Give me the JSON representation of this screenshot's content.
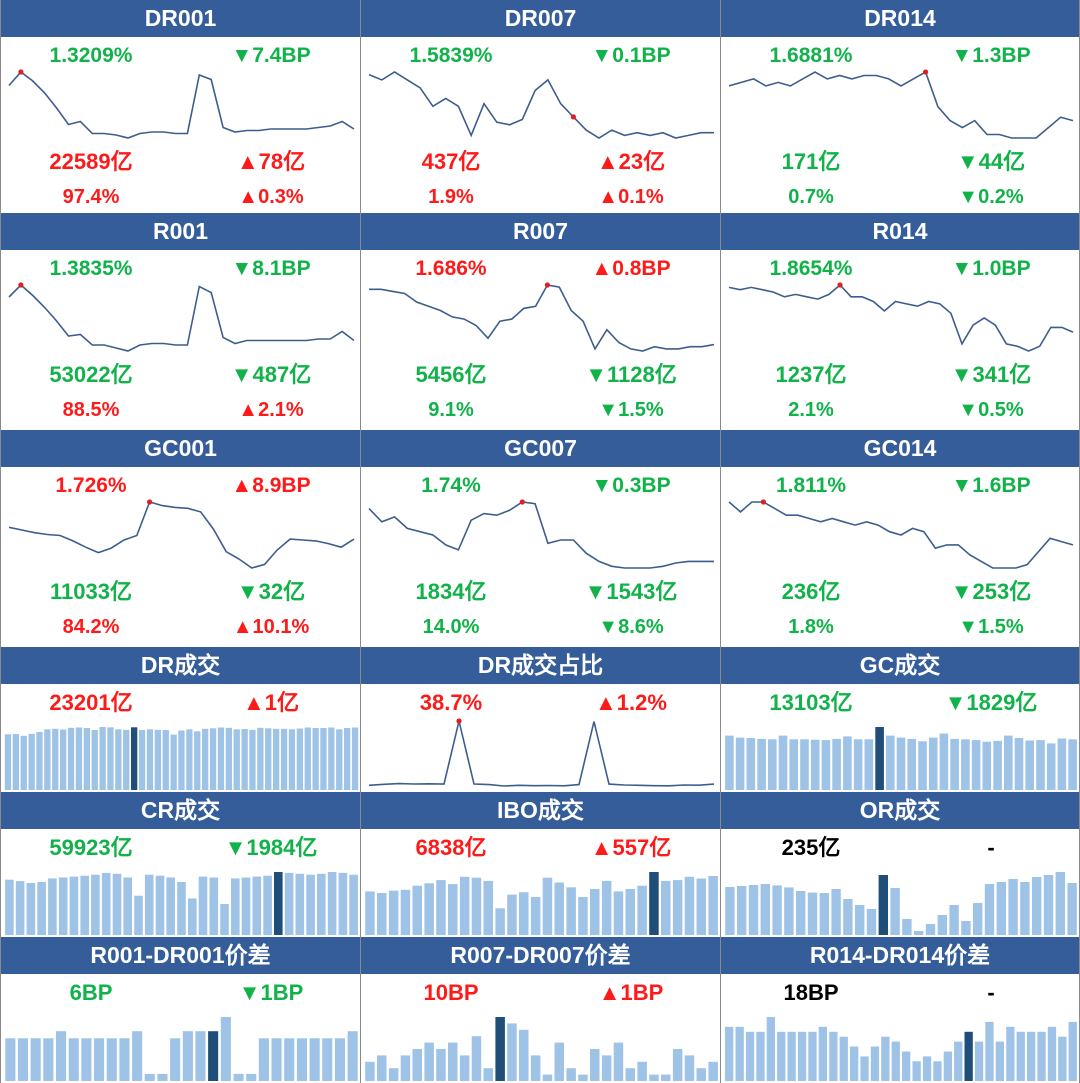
{
  "colors": {
    "header_bg": "#345d9a",
    "up": "#ff1a1a",
    "down": "#12b24a",
    "neutral": "#000000",
    "line": "#3c5e8e",
    "marker": "#e02020",
    "bar": "#9ec3e6",
    "bar_highlight": "#1f4e79"
  },
  "panels": [
    {
      "title": "DR001",
      "chart_type": "line",
      "rate": {
        "text": "1.3209%",
        "dir": "down"
      },
      "rate_change": {
        "text": "▼7.4BP",
        "dir": "down"
      },
      "volume": {
        "text": "22589亿",
        "dir": "up"
      },
      "volume_change": {
        "text": "▲78亿",
        "dir": "up"
      },
      "share": {
        "text": "97.4%",
        "dir": "up"
      },
      "share_change": {
        "text": "▲0.3%",
        "dir": "up"
      }
    },
    {
      "title": "DR007",
      "chart_type": "line",
      "rate": {
        "text": "1.5839%",
        "dir": "down"
      },
      "rate_change": {
        "text": "▼0.1BP",
        "dir": "down"
      },
      "volume": {
        "text": "437亿",
        "dir": "up"
      },
      "volume_change": {
        "text": "▲23亿",
        "dir": "up"
      },
      "share": {
        "text": "1.9%",
        "dir": "up"
      },
      "share_change": {
        "text": "▲0.1%",
        "dir": "up"
      }
    },
    {
      "title": "DR014",
      "chart_type": "line",
      "rate": {
        "text": "1.6881%",
        "dir": "down"
      },
      "rate_change": {
        "text": "▼1.3BP",
        "dir": "down"
      },
      "volume": {
        "text": "171亿",
        "dir": "down"
      },
      "volume_change": {
        "text": "▼44亿",
        "dir": "down"
      },
      "share": {
        "text": "0.7%",
        "dir": "down"
      },
      "share_change": {
        "text": "▼0.2%",
        "dir": "down"
      }
    },
    {
      "title": "R001",
      "chart_type": "line",
      "rate": {
        "text": "1.3835%",
        "dir": "down"
      },
      "rate_change": {
        "text": "▼8.1BP",
        "dir": "down"
      },
      "volume": {
        "text": "53022亿",
        "dir": "down"
      },
      "volume_change": {
        "text": "▼487亿",
        "dir": "down"
      },
      "share": {
        "text": "88.5%",
        "dir": "up"
      },
      "share_change": {
        "text": "▲2.1%",
        "dir": "up"
      }
    },
    {
      "title": "R007",
      "chart_type": "line",
      "rate": {
        "text": "1.686%",
        "dir": "up"
      },
      "rate_change": {
        "text": "▲0.8BP",
        "dir": "up"
      },
      "volume": {
        "text": "5456亿",
        "dir": "down"
      },
      "volume_change": {
        "text": "▼1128亿",
        "dir": "down"
      },
      "share": {
        "text": "9.1%",
        "dir": "down"
      },
      "share_change": {
        "text": "▼1.5%",
        "dir": "down"
      }
    },
    {
      "title": "R014",
      "chart_type": "line",
      "rate": {
        "text": "1.8654%",
        "dir": "down"
      },
      "rate_change": {
        "text": "▼1.0BP",
        "dir": "down"
      },
      "volume": {
        "text": "1237亿",
        "dir": "down"
      },
      "volume_change": {
        "text": "▼341亿",
        "dir": "down"
      },
      "share": {
        "text": "2.1%",
        "dir": "down"
      },
      "share_change": {
        "text": "▼0.5%",
        "dir": "down"
      }
    },
    {
      "title": "GC001",
      "chart_type": "line",
      "rate": {
        "text": "1.726%",
        "dir": "up"
      },
      "rate_change": {
        "text": "▲8.9BP",
        "dir": "up"
      },
      "volume": {
        "text": "11033亿",
        "dir": "down"
      },
      "volume_change": {
        "text": "▼32亿",
        "dir": "down"
      },
      "share": {
        "text": "84.2%",
        "dir": "up"
      },
      "share_change": {
        "text": "▲10.1%",
        "dir": "up"
      }
    },
    {
      "title": "GC007",
      "chart_type": "line",
      "rate": {
        "text": "1.74%",
        "dir": "down"
      },
      "rate_change": {
        "text": "▼0.3BP",
        "dir": "down"
      },
      "volume": {
        "text": "1834亿",
        "dir": "down"
      },
      "volume_change": {
        "text": "▼1543亿",
        "dir": "down"
      },
      "share": {
        "text": "14.0%",
        "dir": "down"
      },
      "share_change": {
        "text": "▼8.6%",
        "dir": "down"
      }
    },
    {
      "title": "GC014",
      "chart_type": "line",
      "rate": {
        "text": "1.811%",
        "dir": "down"
      },
      "rate_change": {
        "text": "▼1.6BP",
        "dir": "down"
      },
      "volume": {
        "text": "236亿",
        "dir": "down"
      },
      "volume_change": {
        "text": "▼253亿",
        "dir": "down"
      },
      "share": {
        "text": "1.8%",
        "dir": "down"
      },
      "share_change": {
        "text": "▼1.5%",
        "dir": "down"
      }
    },
    {
      "title": "DR成交",
      "chart_type": "bar",
      "value": {
        "text": "23201亿",
        "dir": "up"
      },
      "change": {
        "text": "▲1亿",
        "dir": "up"
      }
    },
    {
      "title": "DR成交占比",
      "chart_type": "line",
      "value": {
        "text": "38.7%",
        "dir": "up"
      },
      "change": {
        "text": "▲1.2%",
        "dir": "up"
      }
    },
    {
      "title": "GC成交",
      "chart_type": "bar",
      "value": {
        "text": "13103亿",
        "dir": "down"
      },
      "change": {
        "text": "▼1829亿",
        "dir": "down"
      }
    },
    {
      "title": "CR成交",
      "chart_type": "bar",
      "value": {
        "text": "59923亿",
        "dir": "down"
      },
      "change": {
        "text": "▼1984亿",
        "dir": "down"
      }
    },
    {
      "title": "IBO成交",
      "chart_type": "bar",
      "value": {
        "text": "6838亿",
        "dir": "up"
      },
      "change": {
        "text": "▲557亿",
        "dir": "up"
      }
    },
    {
      "title": "OR成交",
      "chart_type": "bar",
      "value": {
        "text": "235亿",
        "dir": "neutral"
      },
      "change": {
        "text": "-",
        "dir": "neutral"
      }
    },
    {
      "title": "R001-DR001价差",
      "chart_type": "bar",
      "value": {
        "text": "6BP",
        "dir": "down"
      },
      "change": {
        "text": "▼1BP",
        "dir": "down"
      }
    },
    {
      "title": "R007-DR007价差",
      "chart_type": "bar",
      "value": {
        "text": "10BP",
        "dir": "up"
      },
      "change": {
        "text": "▲1BP",
        "dir": "up"
      }
    },
    {
      "title": "R014-DR014价差",
      "chart_type": "bar",
      "value": {
        "text": "18BP",
        "dir": "neutral"
      },
      "change": {
        "text": "-",
        "dir": "neutral"
      }
    }
  ],
  "chart_data": [
    {
      "type": "line",
      "panel": "DR001",
      "highlight_index": 1,
      "y": [
        1.55,
        1.64,
        1.58,
        1.5,
        1.4,
        1.29,
        1.31,
        1.23,
        1.23,
        1.22,
        1.2,
        1.23,
        1.24,
        1.24,
        1.23,
        1.23,
        1.62,
        1.59,
        1.27,
        1.24,
        1.25,
        1.25,
        1.26,
        1.26,
        1.26,
        1.26,
        1.27,
        1.28,
        1.31,
        1.26
      ]
    },
    {
      "type": "line",
      "panel": "DR007",
      "highlight_index": 16,
      "y": [
        1.65,
        1.63,
        1.66,
        1.63,
        1.6,
        1.53,
        1.56,
        1.53,
        1.42,
        1.54,
        1.47,
        1.46,
        1.48,
        1.59,
        1.63,
        1.54,
        1.49,
        1.44,
        1.41,
        1.44,
        1.42,
        1.43,
        1.42,
        1.43,
        1.41,
        1.42,
        1.43,
        1.43
      ]
    },
    {
      "type": "line",
      "panel": "DR014",
      "highlight_index": 16,
      "y": [
        1.7,
        1.71,
        1.72,
        1.7,
        1.71,
        1.7,
        1.72,
        1.74,
        1.72,
        1.73,
        1.72,
        1.73,
        1.73,
        1.72,
        1.7,
        1.72,
        1.74,
        1.64,
        1.6,
        1.58,
        1.6,
        1.56,
        1.56,
        1.55,
        1.55,
        1.55,
        1.58,
        1.61,
        1.6
      ]
    },
    {
      "type": "line",
      "panel": "R001",
      "highlight_index": 1,
      "y": [
        1.56,
        1.64,
        1.57,
        1.49,
        1.4,
        1.3,
        1.31,
        1.24,
        1.24,
        1.22,
        1.2,
        1.24,
        1.25,
        1.25,
        1.24,
        1.24,
        1.63,
        1.59,
        1.29,
        1.25,
        1.27,
        1.27,
        1.27,
        1.27,
        1.27,
        1.27,
        1.28,
        1.28,
        1.33,
        1.27
      ]
    },
    {
      "type": "line",
      "panel": "R007",
      "highlight_index": 15,
      "y": [
        1.66,
        1.66,
        1.65,
        1.64,
        1.6,
        1.58,
        1.56,
        1.53,
        1.52,
        1.49,
        1.43,
        1.51,
        1.52,
        1.57,
        1.58,
        1.68,
        1.67,
        1.56,
        1.51,
        1.38,
        1.47,
        1.41,
        1.38,
        1.37,
        1.39,
        1.38,
        1.38,
        1.39,
        1.39,
        1.4
      ]
    },
    {
      "type": "line",
      "panel": "R014",
      "highlight_index": 10,
      "y": [
        1.86,
        1.85,
        1.86,
        1.85,
        1.84,
        1.82,
        1.83,
        1.82,
        1.81,
        1.83,
        1.87,
        1.82,
        1.82,
        1.8,
        1.76,
        1.8,
        1.79,
        1.78,
        1.8,
        1.79,
        1.75,
        1.62,
        1.7,
        1.73,
        1.7,
        1.62,
        1.61,
        1.59,
        1.61,
        1.69,
        1.69,
        1.67
      ]
    },
    {
      "type": "line",
      "panel": "GC001",
      "highlight_index": 11,
      "y": [
        1.45,
        1.42,
        1.39,
        1.37,
        1.36,
        1.3,
        1.23,
        1.17,
        1.22,
        1.31,
        1.36,
        1.73,
        1.69,
        1.67,
        1.66,
        1.62,
        1.43,
        1.18,
        1.1,
        1.0,
        1.04,
        1.2,
        1.32,
        1.31,
        1.3,
        1.27,
        1.23,
        1.32
      ]
    },
    {
      "type": "line",
      "panel": "GC007",
      "highlight_index": 12,
      "y": [
        1.7,
        1.62,
        1.65,
        1.58,
        1.56,
        1.54,
        1.48,
        1.45,
        1.63,
        1.67,
        1.66,
        1.69,
        1.74,
        1.73,
        1.49,
        1.51,
        1.51,
        1.43,
        1.38,
        1.35,
        1.34,
        1.34,
        1.34,
        1.35,
        1.37,
        1.38,
        1.38,
        1.38
      ]
    },
    {
      "type": "line",
      "panel": "GC014",
      "highlight_index": 3,
      "y": [
        1.81,
        1.78,
        1.81,
        1.81,
        1.79,
        1.77,
        1.77,
        1.76,
        1.75,
        1.76,
        1.75,
        1.74,
        1.75,
        1.74,
        1.72,
        1.71,
        1.73,
        1.72,
        1.67,
        1.68,
        1.68,
        1.65,
        1.63,
        1.61,
        1.61,
        1.61,
        1.62,
        1.66,
        1.7,
        1.69,
        1.68
      ]
    },
    {
      "type": "bar",
      "panel": "DR成交",
      "highlight_index": 16,
      "values": [
        22100,
        22200,
        21500,
        22300,
        23000,
        24100,
        24300,
        24000,
        24700,
        24800,
        24600,
        23800,
        25000,
        24900,
        24100,
        23900,
        24900,
        23800,
        24100,
        23900,
        23800,
        22000,
        23600,
        24100,
        23300,
        24300,
        24500,
        24800,
        24700,
        24100,
        24200,
        23900,
        24700,
        24500,
        24300,
        24300,
        24100,
        24400,
        24800,
        24600,
        24600,
        24800,
        24100,
        24600,
        24800
      ]
    },
    {
      "type": "line",
      "panel": "DR成交占比",
      "highlight_index": 6,
      "y": [
        0.8,
        1.4,
        1.8,
        1.6,
        1.7,
        1.5,
        38.7,
        1.6,
        1.2,
        0.4,
        0.8,
        0.6,
        0.7,
        0.5,
        1.2,
        38.4,
        1.5,
        1.0,
        0.8,
        0.6,
        0.5,
        1.0,
        0.9,
        1.5
      ]
    },
    {
      "type": "bar",
      "panel": "GC成交",
      "highlight_index": 14,
      "values": [
        13300,
        12800,
        12700,
        12500,
        12400,
        13300,
        12400,
        12400,
        12300,
        12200,
        12500,
        13100,
        12400,
        12400,
        15400,
        13300,
        12800,
        12500,
        11900,
        12800,
        13800,
        12500,
        12400,
        12200,
        11800,
        12000,
        13300,
        12700,
        12100,
        12200,
        11400,
        12600,
        12400
      ]
    },
    {
      "type": "bar",
      "panel": "CR成交",
      "highlight_index": 25,
      "values": [
        60600,
        59000,
        57000,
        58000,
        62000,
        63000,
        64000,
        65000,
        66000,
        68000,
        67000,
        63000,
        43000,
        66000,
        65000,
        63000,
        58000,
        40000,
        64000,
        63000,
        34000,
        62000,
        63000,
        64000,
        65000,
        69000,
        68000,
        67000,
        66000,
        67000,
        69000,
        68000,
        66000
      ]
    },
    {
      "type": "bar",
      "panel": "IBO成交",
      "highlight_index": 24,
      "values": [
        5400,
        5200,
        5500,
        5600,
        6100,
        6400,
        6800,
        6300,
        7200,
        7100,
        6700,
        3300,
        5000,
        5300,
        4700,
        7100,
        6500,
        5900,
        4700,
        5700,
        6700,
        5400,
        5700,
        6100,
        7800,
        6700,
        6800,
        7200,
        7000,
        7300
      ]
    },
    {
      "type": "bar",
      "panel": "OR成交",
      "highlight_index": 13,
      "values": [
        240,
        245,
        250,
        255,
        248,
        238,
        220,
        212,
        210,
        230,
        180,
        150,
        130,
        300,
        235,
        80,
        20,
        55,
        100,
        150,
        70,
        160,
        255,
        265,
        280,
        265,
        290,
        300,
        315,
        260
      ]
    },
    {
      "type": "bar",
      "panel": "R001-DR001价差",
      "highlight_index": 16,
      "values": [
        6,
        6,
        6,
        6,
        7,
        6,
        6,
        6,
        6,
        6,
        7,
        1,
        1,
        6,
        7,
        7,
        7,
        9,
        1,
        1,
        6,
        6,
        6,
        6,
        6,
        6,
        6,
        7
      ]
    },
    {
      "type": "bar",
      "panel": "R007-DR007价差",
      "highlight_index": 11,
      "values": [
        3,
        4,
        2,
        4,
        5,
        6,
        5,
        6,
        4,
        7,
        2,
        10,
        9,
        8,
        4,
        1,
        6,
        2,
        1,
        5,
        4,
        6,
        2,
        3,
        1,
        1,
        5,
        4,
        2,
        3
      ]
    },
    {
      "type": "bar",
      "panel": "R014-DR014价差",
      "highlight_index": 23,
      "values": [
        11,
        11,
        10,
        10,
        13,
        10,
        10,
        10,
        10,
        11,
        10,
        9,
        7,
        5,
        7,
        9,
        8,
        6,
        4,
        5,
        4,
        6,
        8,
        10,
        8,
        12,
        8,
        11,
        10,
        10,
        10,
        11,
        9,
        12
      ]
    }
  ]
}
